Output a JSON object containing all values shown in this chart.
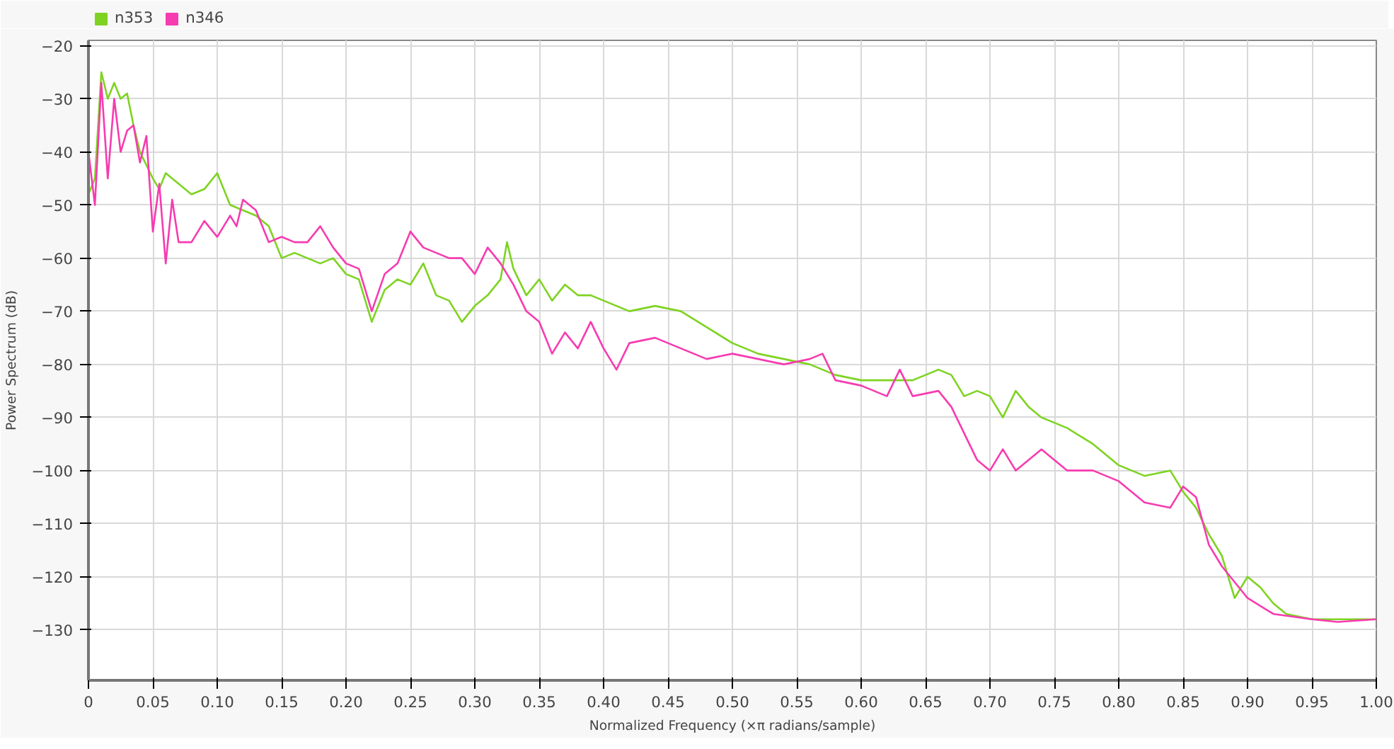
{
  "chart_data": {
    "type": "line",
    "xlabel": "Normalized Frequency (×π radians/sample)",
    "ylabel": "Power Spectrum (dB)",
    "xlim": [
      0,
      1.0
    ],
    "ylim": [
      -139.5,
      -19
    ],
    "xticks": [
      0,
      0.05,
      {
        "value": 0.1,
        "label": "0.10"
      },
      0.15,
      {
        "value": 0.2,
        "label": "0.20"
      },
      0.25,
      {
        "value": 0.3,
        "label": "0.30"
      },
      0.35,
      {
        "value": 0.4,
        "label": "0.40"
      },
      0.45,
      {
        "value": 0.5,
        "label": "0.50"
      },
      0.55,
      {
        "value": 0.6,
        "label": "0.60"
      },
      0.65,
      {
        "value": 0.7,
        "label": "0.70"
      },
      0.75,
      {
        "value": 0.8,
        "label": "0.80"
      },
      0.85,
      {
        "value": 0.9,
        "label": "0.90"
      },
      0.95,
      {
        "value": 1.0,
        "label": "1.00"
      }
    ],
    "yticks": [
      -20,
      -30,
      -40,
      -50,
      -60,
      -70,
      -80,
      -90,
      -100,
      -110,
      -120,
      -130
    ],
    "grid": true,
    "legend": "top left",
    "marker": "none",
    "line_style": "solid",
    "series": [
      {
        "name": "n353",
        "color": "#7ed321",
        "x": [
          0,
          0.005,
          0.01,
          0.015,
          0.02,
          0.025,
          0.03,
          0.035,
          0.04,
          0.05,
          0.055,
          0.06,
          0.07,
          0.08,
          0.09,
          0.1,
          0.11,
          0.12,
          0.13,
          0.14,
          0.15,
          0.16,
          0.17,
          0.18,
          0.19,
          0.2,
          0.21,
          0.22,
          0.23,
          0.24,
          0.25,
          0.26,
          0.27,
          0.28,
          0.29,
          0.3,
          0.31,
          0.32,
          0.325,
          0.33,
          0.34,
          0.35,
          0.36,
          0.37,
          0.38,
          0.39,
          0.4,
          0.42,
          0.44,
          0.46,
          0.48,
          0.5,
          0.52,
          0.54,
          0.56,
          0.58,
          0.6,
          0.62,
          0.64,
          0.66,
          0.67,
          0.68,
          0.69,
          0.7,
          0.71,
          0.72,
          0.73,
          0.74,
          0.76,
          0.78,
          0.8,
          0.82,
          0.84,
          0.85,
          0.86,
          0.87,
          0.88,
          0.89,
          0.9,
          0.91,
          0.92,
          0.93,
          0.95,
          0.97,
          1.0
        ],
        "values": [
          -48,
          -45,
          -25,
          -30,
          -27,
          -30,
          -29,
          -35,
          -40,
          -45,
          -47,
          -44,
          -46,
          -48,
          -47,
          -44,
          -50,
          -51,
          -52,
          -54,
          -60,
          -59,
          -60,
          -61,
          -60,
          -63,
          -64,
          -72,
          -66,
          -64,
          -65,
          -61,
          -67,
          -68,
          -72,
          -69,
          -67,
          -64,
          -57,
          -62,
          -67,
          -64,
          -68,
          -65,
          -67,
          -67,
          -68,
          -70,
          -69,
          -70,
          -73,
          -76,
          -78,
          -79,
          -80,
          -82,
          -83,
          -83,
          -83,
          -81,
          -82,
          -86,
          -85,
          -86,
          -90,
          -85,
          -88,
          -90,
          -92,
          -95,
          -99,
          -101,
          -100,
          -104,
          -107,
          -112,
          -116,
          -124,
          -120,
          -122,
          -125,
          -127,
          -128,
          -128,
          -128
        ]
      },
      {
        "name": "n346",
        "color": "#f73bb0",
        "x": [
          0,
          0.005,
          0.01,
          0.015,
          0.02,
          0.025,
          0.03,
          0.035,
          0.04,
          0.045,
          0.05,
          0.055,
          0.06,
          0.065,
          0.07,
          0.08,
          0.09,
          0.1,
          0.11,
          0.115,
          0.12,
          0.13,
          0.14,
          0.15,
          0.16,
          0.17,
          0.18,
          0.19,
          0.2,
          0.21,
          0.22,
          0.23,
          0.24,
          0.25,
          0.26,
          0.27,
          0.28,
          0.29,
          0.3,
          0.31,
          0.32,
          0.33,
          0.34,
          0.35,
          0.36,
          0.37,
          0.38,
          0.39,
          0.4,
          0.41,
          0.42,
          0.44,
          0.46,
          0.48,
          0.5,
          0.52,
          0.54,
          0.56,
          0.57,
          0.58,
          0.6,
          0.62,
          0.63,
          0.64,
          0.66,
          0.67,
          0.68,
          0.69,
          0.7,
          0.71,
          0.72,
          0.74,
          0.76,
          0.78,
          0.8,
          0.82,
          0.84,
          0.85,
          0.86,
          0.87,
          0.88,
          0.9,
          0.92,
          0.95,
          0.97,
          1.0
        ],
        "values": [
          -40,
          -50,
          -27,
          -45,
          -30,
          -40,
          -36,
          -35,
          -42,
          -37,
          -55,
          -46,
          -61,
          -49,
          -57,
          -57,
          -53,
          -56,
          -52,
          -54,
          -49,
          -51,
          -57,
          -56,
          -57,
          -57,
          -54,
          -58,
          -61,
          -62,
          -70,
          -63,
          -61,
          -55,
          -58,
          -59,
          -60,
          -60,
          -63,
          -58,
          -61,
          -65,
          -70,
          -72,
          -78,
          -74,
          -77,
          -72,
          -77,
          -81,
          -76,
          -75,
          -77,
          -79,
          -78,
          -79,
          -80,
          -79,
          -78,
          -83,
          -84,
          -86,
          -81,
          -86,
          -85,
          -88,
          -93,
          -98,
          -100,
          -96,
          -100,
          -96,
          -100,
          -100,
          -102,
          -106,
          -107,
          -103,
          -105,
          -114,
          -118,
          -124,
          -127,
          -128,
          -128.5,
          -128
        ]
      }
    ]
  }
}
